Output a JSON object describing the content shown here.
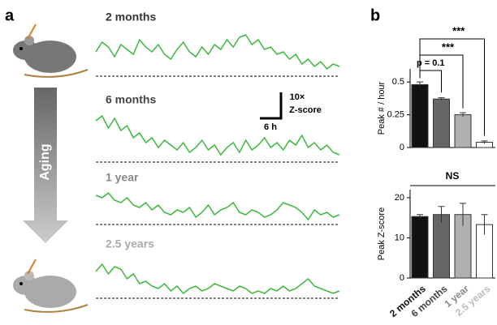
{
  "panel_labels": [
    "a",
    "b"
  ],
  "arrow_label": "Aging",
  "scale_bar": {
    "y_value": "10×",
    "y_unit": "Z-score",
    "x_label": "6 h"
  },
  "chart_data": [
    {
      "type": "trace",
      "color": "#3db83d",
      "series": [
        {
          "name": "2 months",
          "label_color": "#333333",
          "values": [
            10,
            14,
            12,
            8,
            13,
            11,
            9,
            15,
            12,
            10,
            13,
            9,
            7,
            11,
            14,
            10,
            8,
            12,
            9,
            13,
            11,
            15,
            12,
            16,
            17,
            13,
            15,
            11,
            12,
            9,
            10,
            7,
            9,
            5,
            7,
            4,
            6,
            3,
            5,
            4
          ]
        },
        {
          "name": "6 months",
          "label_color": "#444444",
          "values": [
            17,
            19,
            14,
            18,
            13,
            15,
            10,
            12,
            8,
            10,
            6,
            9,
            7,
            5,
            8,
            4,
            6,
            9,
            5,
            7,
            3,
            6,
            8,
            4,
            9,
            5,
            7,
            10,
            6,
            8,
            5,
            9,
            7,
            11,
            6,
            8,
            5,
            7,
            4,
            3
          ]
        },
        {
          "name": "1 year",
          "label_color": "#888888",
          "values": [
            12,
            11,
            13,
            10,
            9,
            11,
            8,
            7,
            9,
            6,
            8,
            5,
            4,
            6,
            5,
            7,
            3,
            5,
            8,
            4,
            6,
            7,
            9,
            5,
            4,
            6,
            5,
            3,
            4,
            6,
            9,
            8,
            7,
            5,
            2,
            6,
            4,
            5,
            3,
            4
          ]
        },
        {
          "name": "2.5 years",
          "label_color": "#aaaaaa",
          "values": [
            11,
            14,
            10,
            13,
            12,
            8,
            10,
            6,
            7,
            5,
            4,
            6,
            3,
            5,
            2,
            4,
            5,
            3,
            4,
            6,
            5,
            4,
            3,
            5,
            4,
            2,
            3,
            2,
            4,
            3,
            5,
            3,
            4,
            6,
            8,
            5,
            4,
            3,
            2,
            3
          ]
        }
      ]
    },
    {
      "type": "bar",
      "ylabel": "Peak # / hour",
      "categories": [
        "2 months",
        "6 months",
        "1 year",
        "2.5 years"
      ],
      "colors": [
        "#111111",
        "#666666",
        "#b0b0b0",
        "#ffffff"
      ],
      "values": [
        0.48,
        0.37,
        0.25,
        0.04
      ],
      "errors": [
        0.02,
        0.01,
        0.015,
        0.01
      ],
      "ylim": [
        0,
        0.6
      ],
      "yticks": [
        0,
        0.25,
        0.5
      ],
      "annotations": [
        "p = 0.1",
        "***",
        "***"
      ]
    },
    {
      "type": "bar",
      "ylabel": "Peak Z-score",
      "categories": [
        "2 months",
        "6 months",
        "1 year",
        "2.5 years"
      ],
      "label_colors": [
        "#111111",
        "#444444",
        "#888888",
        "#bbbbbb"
      ],
      "colors": [
        "#111111",
        "#666666",
        "#b0b0b0",
        "#ffffff"
      ],
      "values": [
        15.3,
        15.8,
        15.8,
        13.3
      ],
      "errors": [
        0.5,
        2,
        2.8,
        2.5
      ],
      "ylim": [
        0,
        22
      ],
      "yticks": [
        0,
        10,
        20
      ],
      "annotations": [
        "NS"
      ]
    }
  ]
}
